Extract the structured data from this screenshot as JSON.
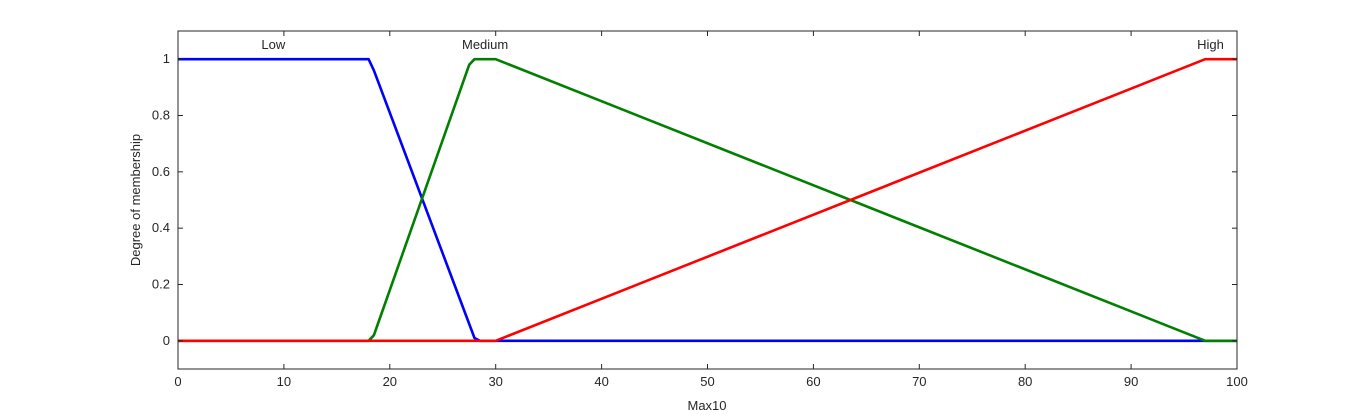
{
  "chart_data": {
    "type": "line",
    "title": "",
    "xlabel": "Max10",
    "ylabel": "Degree of membership",
    "xlim": [
      0,
      100
    ],
    "ylim": [
      -0.1,
      1.1
    ],
    "xticks": [
      0,
      10,
      20,
      30,
      40,
      50,
      60,
      70,
      80,
      90,
      100
    ],
    "yticks": [
      0,
      0.2,
      0.4,
      0.6,
      0.8,
      1
    ],
    "ytick_labels": [
      "0",
      "0.2",
      "0.4",
      "0.6",
      "0.8",
      "1"
    ],
    "grid": false,
    "series": [
      {
        "name": "Low",
        "color": "#0000ff",
        "x": [
          0,
          18,
          18.5,
          28,
          28.5,
          100
        ],
        "y": [
          1,
          1,
          0.96,
          0.01,
          0,
          0
        ],
        "label_x": 9,
        "label_y": 1.05
      },
      {
        "name": "Medium",
        "color": "#008000",
        "x": [
          0,
          18,
          18.5,
          27.5,
          28,
          30,
          97,
          100
        ],
        "y": [
          0,
          0,
          0.02,
          0.98,
          1,
          1,
          0,
          0
        ],
        "label_x": 29,
        "label_y": 1.05
      },
      {
        "name": "High",
        "color": "#ff0000",
        "x": [
          0,
          30,
          97,
          100
        ],
        "y": [
          0,
          0,
          1,
          1
        ],
        "label_x": 97.5,
        "label_y": 1.05
      }
    ]
  }
}
